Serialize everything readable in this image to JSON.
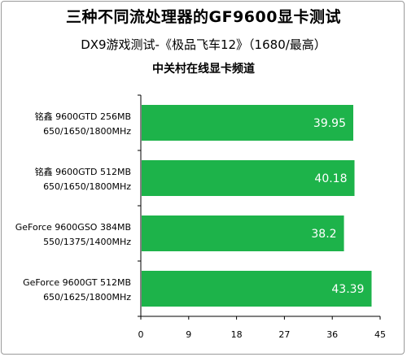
{
  "chart_data": {
    "type": "bar",
    "orientation": "horizontal",
    "title": "三种不同流处理器的GF9600显卡测试",
    "subtitle": "DX9游戏测试-《极品飞车12》（1680/最高）",
    "source": "中关村在线显卡频道",
    "categories": [
      [
        "铭鑫 9600GTD 256MB",
        "650/1650/1800MHz"
      ],
      [
        "铭鑫 9600GTD 512MB",
        "650/1650/1800MHz"
      ],
      [
        "GeForce 9600GSO 384MB",
        "550/1375/1400MHz"
      ],
      [
        "GeForce 9600GT 512MB",
        "650/1625/1800MHz"
      ]
    ],
    "values": [
      39.95,
      40.18,
      38.2,
      43.39
    ],
    "xlim": [
      0,
      45
    ],
    "xticks": [
      0,
      9,
      18,
      27,
      36,
      45
    ],
    "grid": false,
    "legend": "none",
    "bar_color": "#1db34a"
  }
}
